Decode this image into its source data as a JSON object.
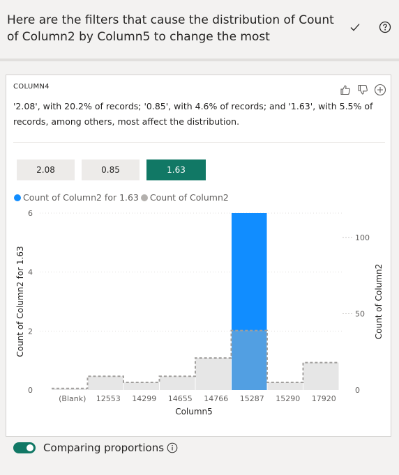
{
  "header": {
    "title": "Here are the filters that cause the distribution of Count of Column2 by Column5 to change the most"
  },
  "card": {
    "field": "COLUMN4",
    "description": "'2.08', with 20.2% of records; '0.85', with 4.6% of records; and '1.63', with 5.5% of records, among others, most affect the distribution.",
    "buttons": [
      {
        "label": "2.08",
        "selected": false
      },
      {
        "label": "0.85",
        "selected": false
      },
      {
        "label": "1.63",
        "selected": true
      }
    ],
    "legend": [
      {
        "label": "Count of Column2 for 1.63",
        "color": "#118dff"
      },
      {
        "label": "Count of Column2",
        "color": "#b3b0ad"
      }
    ]
  },
  "chart_data": {
    "type": "bar",
    "categories": [
      "(Blank)",
      "12553",
      "14299",
      "14655",
      "14766",
      "15287",
      "15290",
      "17920"
    ],
    "series": [
      {
        "name": "Count of Column2 for 1.63",
        "axis": "left",
        "color": "#118dff",
        "values": [
          0,
          0,
          0,
          0,
          0,
          6,
          0,
          0
        ]
      },
      {
        "name": "Count of Column2",
        "axis": "right",
        "color": "#e6e6e6",
        "values": [
          1,
          9,
          5,
          9,
          21,
          39,
          5,
          18
        ]
      }
    ],
    "xlabel": "Column5",
    "ylabel": "Count of Column2 for 1.63",
    "y2label": "Count of Column2",
    "ylim": [
      0,
      6
    ],
    "y2lim": [
      0,
      116
    ],
    "yticks": [
      "0",
      "2",
      "4",
      "6"
    ],
    "y2ticks": [
      "0",
      "50",
      "100"
    ],
    "grid": true
  },
  "footer": {
    "toggle_label": "Comparing proportions",
    "toggle_on": true
  }
}
